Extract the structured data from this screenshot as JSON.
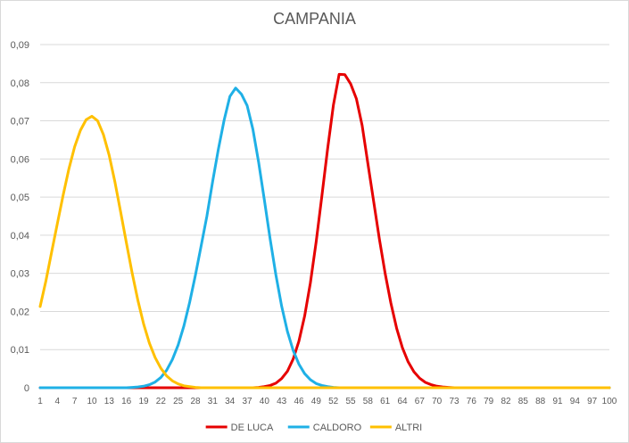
{
  "chart_data": {
    "type": "line",
    "title": "CAMPANIA",
    "x": [
      1,
      2,
      3,
      4,
      5,
      6,
      7,
      8,
      9,
      10,
      11,
      12,
      13,
      14,
      15,
      16,
      17,
      18,
      19,
      20,
      21,
      22,
      23,
      24,
      25,
      26,
      27,
      28,
      29,
      30,
      31,
      32,
      33,
      34,
      35,
      36,
      37,
      38,
      39,
      40,
      41,
      42,
      43,
      44,
      45,
      46,
      47,
      48,
      49,
      50,
      51,
      52,
      53,
      54,
      55,
      56,
      57,
      58,
      59,
      60,
      61,
      62,
      63,
      64,
      65,
      66,
      67,
      68,
      69,
      70,
      71,
      72,
      73,
      74,
      75,
      76,
      77,
      78,
      79,
      80,
      81,
      82,
      83,
      84,
      85,
      86,
      87,
      88,
      89,
      90,
      91,
      92,
      93,
      94,
      95,
      96,
      97,
      98,
      99,
      100
    ],
    "x_tick_labels": [
      "1",
      "4",
      "7",
      "10",
      "13",
      "16",
      "19",
      "22",
      "25",
      "28",
      "31",
      "34",
      "37",
      "40",
      "43",
      "46",
      "49",
      "52",
      "55",
      "58",
      "61",
      "64",
      "67",
      "70",
      "73",
      "76",
      "79",
      "82",
      "85",
      "88",
      "91",
      "94",
      "97",
      "100"
    ],
    "y_tick_labels": [
      "0",
      "0,01",
      "0,02",
      "0,03",
      "0,04",
      "0,05",
      "0,06",
      "0,07",
      "0,08",
      "0,09"
    ],
    "ylim": [
      0,
      0.09
    ],
    "grid": "horizontal",
    "legend": "bottom",
    "series": [
      {
        "name": "DE LUCA",
        "color": "#e60000",
        "values": [
          0,
          0,
          0,
          0,
          0,
          0,
          0,
          0,
          0,
          0,
          0,
          0,
          0,
          0,
          0,
          0,
          0,
          0,
          0,
          0,
          0,
          0,
          0,
          0,
          0,
          0,
          0,
          0,
          0,
          0,
          0,
          0,
          0,
          0,
          0,
          0,
          0,
          0,
          0.0001,
          0.0003,
          0.0006,
          0.0012,
          0.0024,
          0.0043,
          0.0075,
          0.0122,
          0.0188,
          0.0275,
          0.0382,
          0.0503,
          0.0627,
          0.0741,
          0.0822,
          0.0821,
          0.0797,
          0.0758,
          0.0688,
          0.0588,
          0.0489,
          0.039,
          0.03,
          0.0222,
          0.0156,
          0.0105,
          0.0068,
          0.0042,
          0.0025,
          0.0014,
          0.0008,
          0.0004,
          0.0002,
          0.0001,
          0,
          0,
          0,
          0,
          0,
          0,
          0,
          0,
          0,
          0,
          0,
          0,
          0,
          0,
          0,
          0,
          0,
          0,
          0,
          0,
          0,
          0,
          0,
          0,
          0,
          0,
          0,
          0
        ]
      },
      {
        "name": "CALDORO",
        "color": "#1fb0e6",
        "values": [
          0,
          0,
          0,
          0,
          0,
          0,
          0,
          0,
          0,
          0,
          0,
          0,
          0,
          0,
          0,
          0,
          0.0001,
          0.0002,
          0.0004,
          0.0008,
          0.0015,
          0.0027,
          0.0046,
          0.0074,
          0.0112,
          0.0162,
          0.0224,
          0.0295,
          0.0372,
          0.045,
          0.0541,
          0.0626,
          0.0702,
          0.0764,
          0.0786,
          0.077,
          0.074,
          0.0678,
          0.0591,
          0.0492,
          0.039,
          0.0296,
          0.0214,
          0.0148,
          0.0098,
          0.0062,
          0.0037,
          0.0021,
          0.0011,
          0.0006,
          0.0003,
          0.0001,
          0,
          0,
          0,
          0,
          0,
          0,
          0,
          0,
          0,
          0,
          0,
          0,
          0,
          0,
          0,
          0,
          0,
          0,
          0,
          0,
          0,
          0,
          0,
          0,
          0,
          0,
          0,
          0,
          0,
          0,
          0,
          0,
          0,
          0,
          0,
          0,
          0,
          0,
          0,
          0,
          0,
          0,
          0,
          0,
          0,
          0,
          0,
          0
        ]
      },
      {
        "name": "ALTRI",
        "color": "#ffc000",
        "values": [
          0.0213,
          0.028,
          0.0356,
          0.0431,
          0.0505,
          0.0574,
          0.0632,
          0.0675,
          0.0703,
          0.0712,
          0.07,
          0.0664,
          0.061,
          0.054,
          0.0461,
          0.038,
          0.0301,
          0.0229,
          0.0167,
          0.0117,
          0.0079,
          0.0051,
          0.0031,
          0.0018,
          0.001,
          0.0005,
          0.0003,
          0.0001,
          0,
          0,
          0,
          0,
          0,
          0,
          0,
          0,
          0,
          0,
          0,
          0,
          0,
          0,
          0,
          0,
          0,
          0,
          0,
          0,
          0,
          0,
          0,
          0,
          0,
          0,
          0,
          0,
          0,
          0,
          0,
          0,
          0,
          0,
          0,
          0,
          0,
          0,
          0,
          0,
          0,
          0,
          0,
          0,
          0,
          0,
          0,
          0,
          0,
          0,
          0,
          0,
          0,
          0,
          0,
          0,
          0,
          0,
          0,
          0,
          0,
          0,
          0,
          0,
          0,
          0,
          0,
          0,
          0,
          0,
          0,
          0
        ]
      }
    ]
  }
}
